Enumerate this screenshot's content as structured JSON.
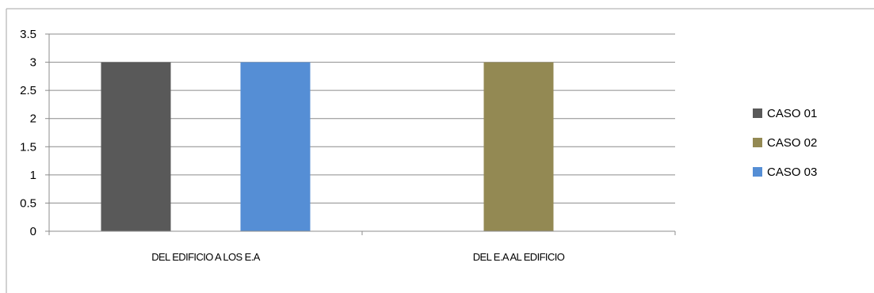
{
  "chart_data": {
    "type": "bar",
    "title": "",
    "xlabel": "",
    "ylabel": "",
    "categories": [
      "DEL EDIFICIO A LOS E.A",
      "DEL E.A AL EDIFICIO"
    ],
    "ylim": [
      0,
      3.5
    ],
    "yticks": [
      "0",
      "0.5",
      "1",
      "1.5",
      "2",
      "2.5",
      "3",
      "3.5"
    ],
    "grid": true,
    "legend_position": "right",
    "series": [
      {
        "name": "CASO 01",
        "color": "#595959",
        "values": [
          3,
          0
        ]
      },
      {
        "name": "CASO 02",
        "color": "#938953",
        "values": [
          0,
          3
        ]
      },
      {
        "name": "CASO 03",
        "color": "#558ed5",
        "values": [
          3,
          0
        ]
      }
    ]
  },
  "colors": {
    "gridline": "#8c8c8c",
    "axis": "#8c8c8c",
    "border": "#a6a6a6"
  }
}
